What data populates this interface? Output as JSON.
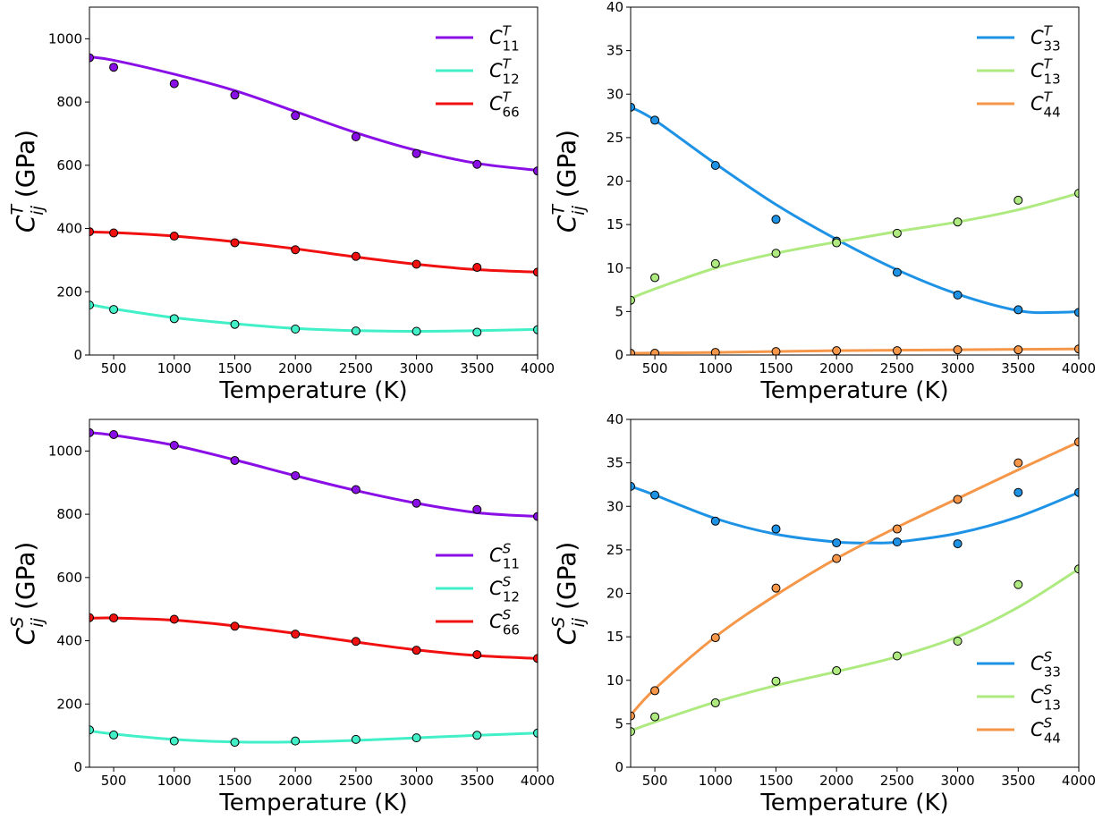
{
  "chart_data": [
    {
      "type": "line",
      "id": "top-left",
      "xlabel": "Temperature (K)",
      "ylabel": {
        "sym": "C",
        "sup": "T",
        "sub": "ij",
        "rest": " (GPa)"
      },
      "xlim": [
        300,
        4000
      ],
      "ylim": [
        0,
        1100
      ],
      "xticks": [
        500,
        1000,
        1500,
        2000,
        2500,
        3000,
        3500,
        4000
      ],
      "yticks": [
        0,
        200,
        400,
        600,
        800,
        1000
      ],
      "legend_position": "top-right",
      "series": [
        {
          "name": {
            "sym": "C",
            "sup": "T",
            "sub": "11"
          },
          "color": "#8a0fe6",
          "points": [
            [
              300,
              940
            ],
            [
              500,
              910
            ],
            [
              1000,
              858
            ],
            [
              1500,
              822
            ],
            [
              2000,
              757
            ],
            [
              2500,
              690
            ],
            [
              3000,
              637
            ],
            [
              3500,
              603
            ],
            [
              4000,
              582
            ]
          ],
          "fit": [
            [
              300,
              943
            ],
            [
              500,
              932
            ],
            [
              1000,
              888
            ],
            [
              1500,
              836
            ],
            [
              2000,
              770
            ],
            [
              2500,
              703
            ],
            [
              3000,
              647
            ],
            [
              3500,
              606
            ],
            [
              4000,
              584
            ]
          ]
        },
        {
          "name": {
            "sym": "C",
            "sup": "T",
            "sub": "12"
          },
          "color": "#42f0c8",
          "points": [
            [
              300,
              158
            ],
            [
              500,
              144
            ],
            [
              1000,
              115
            ],
            [
              1500,
              97
            ],
            [
              2000,
              82
            ],
            [
              2500,
              76
            ],
            [
              3000,
              75
            ],
            [
              3500,
              72
            ],
            [
              4000,
              80
            ]
          ],
          "fit": [
            [
              300,
              160
            ],
            [
              500,
              146
            ],
            [
              1000,
              118
            ],
            [
              1500,
              99
            ],
            [
              2000,
              84
            ],
            [
              2500,
              77
            ],
            [
              3000,
              75
            ],
            [
              3500,
              77
            ],
            [
              4000,
              81
            ]
          ]
        },
        {
          "name": {
            "sym": "C",
            "sup": "T",
            "sub": "66"
          },
          "color": "#f01010",
          "points": [
            [
              300,
              390
            ],
            [
              500,
              386
            ],
            [
              1000,
              376
            ],
            [
              1500,
              355
            ],
            [
              2000,
              333
            ],
            [
              2500,
              312
            ],
            [
              3000,
              287
            ],
            [
              3500,
              277
            ],
            [
              4000,
              262
            ]
          ],
          "fit": [
            [
              300,
              389
            ],
            [
              500,
              387
            ],
            [
              1000,
              376
            ],
            [
              1500,
              358
            ],
            [
              2000,
              336
            ],
            [
              2500,
              310
            ],
            [
              3000,
              287
            ],
            [
              3500,
              270
            ],
            [
              4000,
              262
            ]
          ]
        }
      ]
    },
    {
      "type": "line",
      "id": "top-right",
      "xlabel": "Temperature (K)",
      "ylabel": {
        "sym": "C",
        "sup": "T",
        "sub": "ij",
        "rest": " (GPa)"
      },
      "xlim": [
        300,
        4000
      ],
      "ylim": [
        0,
        40
      ],
      "xticks": [
        500,
        1000,
        1500,
        2000,
        2500,
        3000,
        3500,
        4000
      ],
      "yticks": [
        0,
        5,
        10,
        15,
        20,
        25,
        30,
        35,
        40
      ],
      "legend_position": "top-right",
      "series": [
        {
          "name": {
            "sym": "C",
            "sup": "T",
            "sub": "33"
          },
          "color": "#1e93e6",
          "points": [
            [
              300,
              28.5
            ],
            [
              500,
              27.0
            ],
            [
              1000,
              21.8
            ],
            [
              1500,
              15.6
            ],
            [
              2000,
              13.1
            ],
            [
              2500,
              9.5
            ],
            [
              3000,
              6.9
            ],
            [
              3500,
              5.2
            ],
            [
              4000,
              4.9
            ]
          ],
          "fit": [
            [
              300,
              28.5
            ],
            [
              500,
              27.0
            ],
            [
              1000,
              22.0
            ],
            [
              1500,
              17.3
            ],
            [
              2000,
              13.3
            ],
            [
              2500,
              9.8
            ],
            [
              3000,
              7.0
            ],
            [
              3500,
              5.1
            ],
            [
              3800,
              4.9
            ],
            [
              4000,
              5.0
            ]
          ]
        },
        {
          "name": {
            "sym": "C",
            "sup": "T",
            "sub": "13"
          },
          "color": "#aeea80",
          "points": [
            [
              300,
              6.3
            ],
            [
              500,
              8.9
            ],
            [
              1000,
              10.5
            ],
            [
              1500,
              11.7
            ],
            [
              2000,
              12.9
            ],
            [
              2500,
              14.0
            ],
            [
              3000,
              15.3
            ],
            [
              3500,
              17.8
            ],
            [
              4000,
              18.6
            ]
          ],
          "fit": [
            [
              300,
              6.5
            ],
            [
              500,
              7.6
            ],
            [
              1000,
              10.0
            ],
            [
              1500,
              11.7
            ],
            [
              2000,
              13.0
            ],
            [
              2500,
              14.2
            ],
            [
              3000,
              15.3
            ],
            [
              3500,
              16.7
            ],
            [
              4000,
              18.6
            ]
          ]
        },
        {
          "name": {
            "sym": "C",
            "sup": "T",
            "sub": "44"
          },
          "color": "#f59648",
          "points": [
            [
              300,
              0.2
            ],
            [
              500,
              0.2
            ],
            [
              1000,
              0.3
            ],
            [
              1500,
              0.4
            ],
            [
              2000,
              0.5
            ],
            [
              2500,
              0.5
            ],
            [
              3000,
              0.6
            ],
            [
              3500,
              0.6
            ],
            [
              4000,
              0.7
            ]
          ],
          "fit": [
            [
              300,
              0.2
            ],
            [
              1000,
              0.3
            ],
            [
              2000,
              0.5
            ],
            [
              3000,
              0.6
            ],
            [
              4000,
              0.7
            ]
          ]
        }
      ]
    },
    {
      "type": "line",
      "id": "bottom-left",
      "xlabel": "Temperature (K)",
      "ylabel": {
        "sym": "C",
        "sup": "S",
        "sub": "ij",
        "rest": " (GPa)"
      },
      "xlim": [
        300,
        4000
      ],
      "ylim": [
        0,
        1100
      ],
      "xticks": [
        500,
        1000,
        1500,
        2000,
        2500,
        3000,
        3500,
        4000
      ],
      "yticks": [
        0,
        200,
        400,
        600,
        800,
        1000
      ],
      "legend_position": "center-right",
      "series": [
        {
          "name": {
            "sym": "C",
            "sup": "S",
            "sub": "11"
          },
          "color": "#8a0fe6",
          "points": [
            [
              300,
              1058
            ],
            [
              500,
              1052
            ],
            [
              1000,
              1018
            ],
            [
              1500,
              970
            ],
            [
              2000,
              922
            ],
            [
              2500,
              878
            ],
            [
              3000,
              835
            ],
            [
              3500,
              815
            ],
            [
              4000,
              793
            ]
          ],
          "fit": [
            [
              300,
              1058
            ],
            [
              500,
              1050
            ],
            [
              1000,
              1018
            ],
            [
              1500,
              972
            ],
            [
              2000,
              922
            ],
            [
              2500,
              875
            ],
            [
              3000,
              835
            ],
            [
              3500,
              805
            ],
            [
              4000,
              793
            ]
          ]
        },
        {
          "name": {
            "sym": "C",
            "sup": "S",
            "sub": "12"
          },
          "color": "#42f0c8",
          "points": [
            [
              300,
              118
            ],
            [
              500,
              102
            ],
            [
              1000,
              83
            ],
            [
              1500,
              79
            ],
            [
              2000,
              83
            ],
            [
              2500,
              88
            ],
            [
              3000,
              93
            ],
            [
              3500,
              101
            ],
            [
              4000,
              108
            ]
          ],
          "fit": [
            [
              300,
              115
            ],
            [
              500,
              105
            ],
            [
              1000,
              88
            ],
            [
              1500,
              80
            ],
            [
              2000,
              80
            ],
            [
              2500,
              85
            ],
            [
              3000,
              93
            ],
            [
              3500,
              101
            ],
            [
              4000,
              108
            ]
          ]
        },
        {
          "name": {
            "sym": "C",
            "sup": "S",
            "sub": "66"
          },
          "color": "#f01010",
          "points": [
            [
              300,
              473
            ],
            [
              500,
              472
            ],
            [
              1000,
              468
            ],
            [
              1500,
              446
            ],
            [
              2000,
              421
            ],
            [
              2500,
              398
            ],
            [
              3000,
              370
            ],
            [
              3500,
              356
            ],
            [
              4000,
              344
            ]
          ],
          "fit": [
            [
              300,
              471
            ],
            [
              500,
              472
            ],
            [
              1000,
              465
            ],
            [
              1500,
              447
            ],
            [
              2000,
              423
            ],
            [
              2500,
              396
            ],
            [
              3000,
              371
            ],
            [
              3500,
              353
            ],
            [
              4000,
              344
            ]
          ]
        }
      ]
    },
    {
      "type": "line",
      "id": "bottom-right",
      "xlabel": "Temperature (K)",
      "ylabel": {
        "sym": "C",
        "sup": "S",
        "sub": "ij",
        "rest": " (GPa)"
      },
      "xlim": [
        300,
        4000
      ],
      "ylim": [
        0,
        40
      ],
      "xticks": [
        500,
        1000,
        1500,
        2000,
        2500,
        3000,
        3500,
        4000
      ],
      "yticks": [
        0,
        5,
        10,
        15,
        20,
        25,
        30,
        35,
        40
      ],
      "legend_position": "bottom-right",
      "series": [
        {
          "name": {
            "sym": "C",
            "sup": "S",
            "sub": "33"
          },
          "color": "#1e93e6",
          "points": [
            [
              300,
              32.3
            ],
            [
              500,
              31.3
            ],
            [
              1000,
              28.3
            ],
            [
              1500,
              27.4
            ],
            [
              2000,
              25.8
            ],
            [
              2500,
              25.9
            ],
            [
              3000,
              25.7
            ],
            [
              3500,
              31.6
            ],
            [
              4000,
              31.6
            ]
          ],
          "fit": [
            [
              300,
              32.3
            ],
            [
              500,
              31.3
            ],
            [
              1000,
              28.6
            ],
            [
              1500,
              26.8
            ],
            [
              2000,
              25.9
            ],
            [
              2300,
              25.8
            ],
            [
              2500,
              25.9
            ],
            [
              3000,
              26.9
            ],
            [
              3500,
              28.8
            ],
            [
              4000,
              31.6
            ]
          ]
        },
        {
          "name": {
            "sym": "C",
            "sup": "S",
            "sub": "13"
          },
          "color": "#aeea80",
          "points": [
            [
              300,
              4.1
            ],
            [
              500,
              5.8
            ],
            [
              1000,
              7.4
            ],
            [
              1500,
              9.9
            ],
            [
              2000,
              11.1
            ],
            [
              2500,
              12.8
            ],
            [
              3000,
              14.5
            ],
            [
              3500,
              21.0
            ],
            [
              4000,
              22.8
            ]
          ],
          "fit": [
            [
              300,
              4.2
            ],
            [
              500,
              5.2
            ],
            [
              1000,
              7.5
            ],
            [
              1500,
              9.4
            ],
            [
              2000,
              11.0
            ],
            [
              2500,
              12.7
            ],
            [
              3000,
              15.0
            ],
            [
              3500,
              18.4
            ],
            [
              4000,
              22.8
            ]
          ]
        },
        {
          "name": {
            "sym": "C",
            "sup": "S",
            "sub": "44"
          },
          "color": "#f59648",
          "points": [
            [
              300,
              5.9
            ],
            [
              500,
              8.8
            ],
            [
              1000,
              14.9
            ],
            [
              1500,
              20.6
            ],
            [
              2000,
              24.0
            ],
            [
              2500,
              27.4
            ],
            [
              3000,
              30.8
            ],
            [
              3500,
              35.0
            ],
            [
              4000,
              37.4
            ]
          ],
          "fit": [
            [
              300,
              6.0
            ],
            [
              500,
              9.0
            ],
            [
              1000,
              15.0
            ],
            [
              1500,
              19.8
            ],
            [
              2000,
              24.0
            ],
            [
              2500,
              27.6
            ],
            [
              3000,
              30.9
            ],
            [
              3500,
              34.2
            ],
            [
              4000,
              37.4
            ]
          ]
        }
      ]
    }
  ]
}
